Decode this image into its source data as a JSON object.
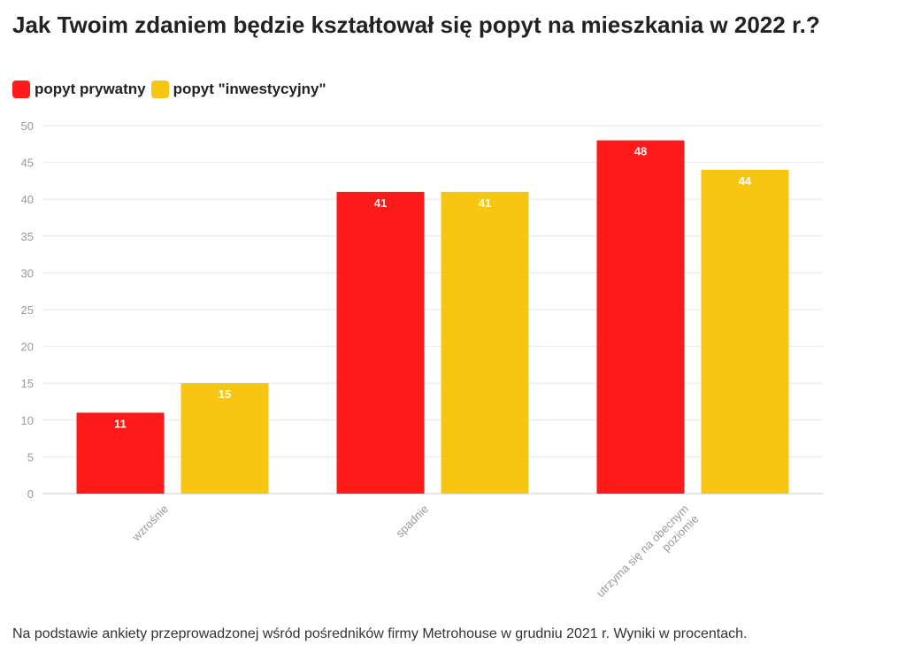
{
  "chart_data": {
    "type": "bar",
    "title": "Jak Twoim zdaniem będzie kształtował się popyt na mieszkania w 2022 r.?",
    "categories": [
      "wzrośnie",
      "spadnie",
      "utrzyma się na obecnym poziomie"
    ],
    "category_lines": [
      [
        "wzrośnie"
      ],
      [
        "spadnie"
      ],
      [
        "utrzyma się na obecnym",
        "poziomie"
      ]
    ],
    "series": [
      {
        "name": "popyt prywatny",
        "color": "#ff1a1a",
        "values": [
          11,
          41,
          48
        ]
      },
      {
        "name": "popyt \"inwestycyjny\"",
        "color": "#f7c613",
        "values": [
          15,
          41,
          44
        ]
      }
    ],
    "ylim": [
      0,
      50
    ],
    "yticks": [
      0,
      5,
      10,
      15,
      20,
      25,
      30,
      35,
      40,
      45,
      50
    ],
    "xlabel": "",
    "ylabel": "",
    "legend": "top-left",
    "grid": true
  },
  "footnote": "Na podstawie ankiety przeprowadzonej wśród pośredników firmy Metrohouse w grudniu 2021 r. Wyniki w procentach."
}
